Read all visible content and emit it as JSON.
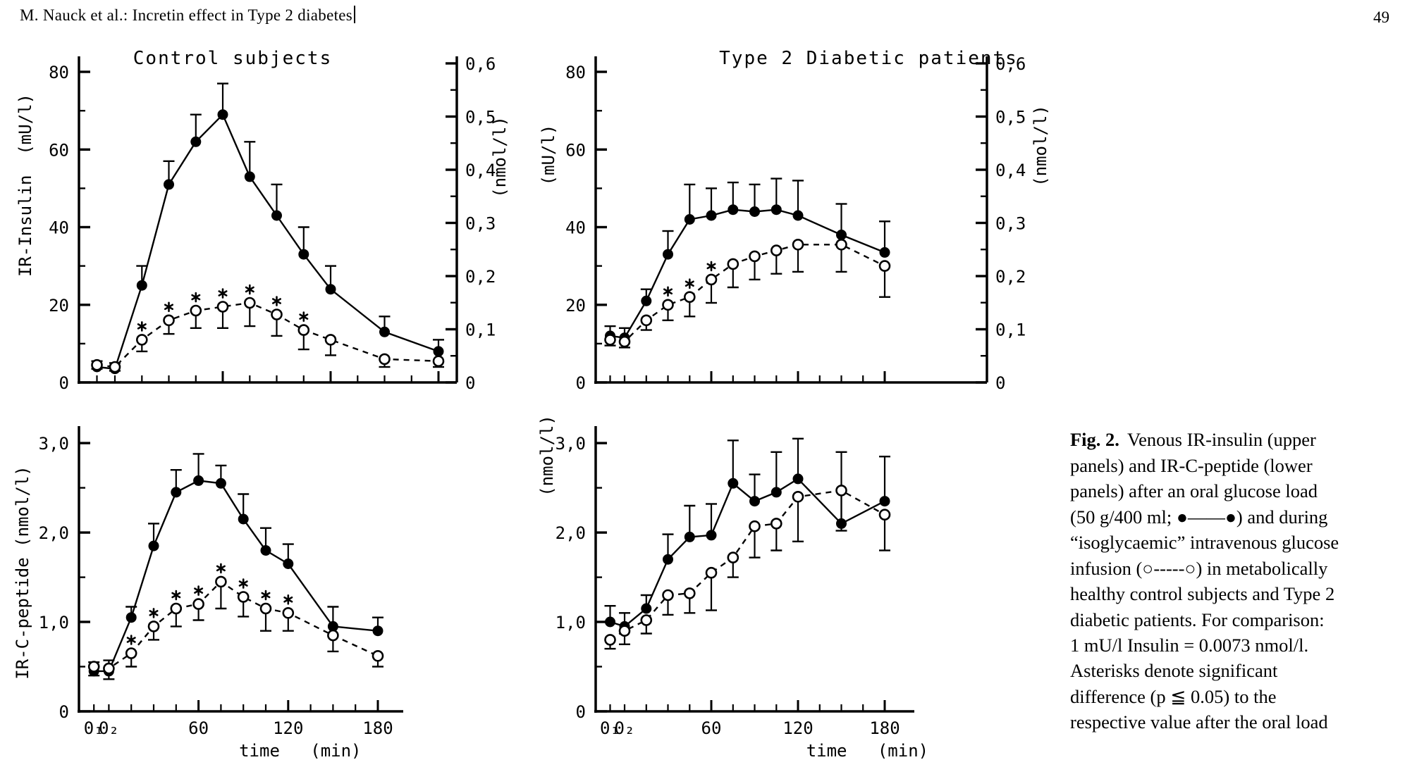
{
  "header": {
    "running_title": "M. Nauck et al.: Incretin effect in Type 2 diabetes",
    "page_number": "49"
  },
  "caption": {
    "label": "Fig. 2.",
    "text": "Venous IR-insulin (upper\npanels) and IR-C-peptide (lower\npanels) after an oral glucose load\n(50 g/400 ml; ●——●) and during\n“isoglycaemic” intravenous glucose\ninfusion (○-----○) in metabolically\nhealthy control subjects and Type 2\ndiabetic patients. For comparison:\n1 mU/l Insulin = 0.0073 nmol/l.\nAsterisks denote significant\ndifference (p ≦ 0.05) to the\nrespective value after the oral load"
  },
  "x_ticks": [
    {
      "t": -10,
      "label": "0₁"
    },
    {
      "t": 0,
      "label": "0₂"
    },
    {
      "t": 15
    },
    {
      "t": 30
    },
    {
      "t": 45
    },
    {
      "t": 60,
      "label": "60",
      "major": true
    },
    {
      "t": 75
    },
    {
      "t": 90
    },
    {
      "t": 105
    },
    {
      "t": 120,
      "label": "120",
      "major": true
    },
    {
      "t": 135
    },
    {
      "t": 150
    },
    {
      "t": 165
    },
    {
      "t": 180,
      "label": "180",
      "major": true
    }
  ],
  "chart_data": [
    {
      "type": "line",
      "id": "control-ir-insulin",
      "title": "Control subjects",
      "measure": "IR-Insulin",
      "y_axis_label": "IR-Insulin  (mU/l)",
      "right_axis_label": "(nmol/l)",
      "x_axis_label": "",
      "xlim": [
        -20,
        190
      ],
      "ylim": [
        0,
        84
      ],
      "x": [
        -10,
        0,
        15,
        30,
        45,
        60,
        75,
        90,
        105,
        120,
        150,
        180
      ],
      "y_ticks": [
        {
          "v": 0,
          "label": "0"
        },
        {
          "v": 10
        },
        {
          "v": 20,
          "label": "20"
        },
        {
          "v": 30
        },
        {
          "v": 40,
          "label": "40"
        },
        {
          "v": 50
        },
        {
          "v": 60,
          "label": "60"
        },
        {
          "v": 70
        },
        {
          "v": 80,
          "label": "80"
        }
      ],
      "right_axis": {
        "unit_per_left": 0.0073,
        "ticks": [
          {
            "v": 0,
            "label": "0"
          },
          {
            "v": 0.05
          },
          {
            "v": 0.1,
            "label": "0,1"
          },
          {
            "v": 0.15
          },
          {
            "v": 0.2,
            "label": "0,2"
          },
          {
            "v": 0.25
          },
          {
            "v": 0.3,
            "label": "0,3"
          },
          {
            "v": 0.35
          },
          {
            "v": 0.4,
            "label": "0,4"
          },
          {
            "v": 0.45
          },
          {
            "v": 0.5,
            "label": "0,5"
          },
          {
            "v": 0.55
          },
          {
            "v": 0.6,
            "label": "0,6"
          }
        ]
      },
      "series": [
        {
          "name": "oral glucose load (50 g/400 ml)",
          "marker": "filled",
          "line": "solid",
          "error_direction": "up",
          "values": [
            4,
            3.5,
            25,
            51,
            62,
            69,
            53,
            43,
            33,
            24,
            13,
            8
          ],
          "errors": [
            1.5,
            1.5,
            5,
            6,
            7,
            8,
            9,
            8,
            7,
            6,
            4,
            3
          ]
        },
        {
          "name": "isoglycaemic intravenous glucose infusion",
          "marker": "open",
          "line": "dashed",
          "error_direction": "down",
          "values": [
            4.5,
            4,
            11,
            16,
            18.5,
            19.5,
            20.5,
            17.5,
            13.5,
            11,
            6,
            5.5
          ],
          "errors": [
            1,
            1,
            3,
            3.5,
            4.5,
            5.5,
            6,
            5.5,
            5,
            4,
            2,
            1.5
          ]
        }
      ],
      "asterisk_times": [
        15,
        30,
        45,
        60,
        75,
        90,
        105
      ]
    },
    {
      "type": "line",
      "id": "type2-ir-insulin",
      "title": "Type 2 Diabetic patients",
      "measure": "IR-Insulin",
      "y_axis_label": "(mU/l)",
      "right_axis_label": "(nmol/l)",
      "x_axis_label": "",
      "xlim": [
        -20,
        190
      ],
      "ylim": [
        0,
        84
      ],
      "x": [
        -10,
        0,
        15,
        30,
        45,
        60,
        75,
        90,
        105,
        120,
        150,
        180
      ],
      "y_ticks": [
        {
          "v": 0,
          "label": "0"
        },
        {
          "v": 10
        },
        {
          "v": 20,
          "label": "20"
        },
        {
          "v": 30
        },
        {
          "v": 40,
          "label": "40"
        },
        {
          "v": 50
        },
        {
          "v": 60,
          "label": "60"
        },
        {
          "v": 70
        },
        {
          "v": 80,
          "label": "80"
        }
      ],
      "right_axis": {
        "unit_per_left": 0.0073,
        "ticks": [
          {
            "v": 0,
            "label": "0"
          },
          {
            "v": 0.05
          },
          {
            "v": 0.1,
            "label": "0,1"
          },
          {
            "v": 0.15
          },
          {
            "v": 0.2,
            "label": "0,2"
          },
          {
            "v": 0.25
          },
          {
            "v": 0.3,
            "label": "0,3"
          },
          {
            "v": 0.35
          },
          {
            "v": 0.4,
            "label": "0,4"
          },
          {
            "v": 0.45
          },
          {
            "v": 0.5,
            "label": "0,5"
          },
          {
            "v": 0.55
          },
          {
            "v": 0.6,
            "label": "0,6"
          }
        ]
      },
      "series": [
        {
          "name": "oral glucose load (50 g/400 ml)",
          "marker": "filled",
          "line": "solid",
          "error_direction": "up",
          "values": [
            12,
            11.5,
            21,
            33,
            42,
            43,
            44.5,
            44,
            44.5,
            43,
            38,
            33.5
          ],
          "errors": [
            2.5,
            2.5,
            3,
            6,
            9,
            7,
            7,
            7,
            8,
            9,
            8,
            8
          ]
        },
        {
          "name": "isoglycaemic intravenous glucose infusion",
          "marker": "open",
          "line": "dashed",
          "error_direction": "down",
          "values": [
            11,
            10.5,
            16,
            20,
            22,
            26.5,
            30.5,
            32.5,
            34,
            35.5,
            35.5,
            30
          ],
          "errors": [
            1.5,
            1.5,
            2.5,
            4,
            5,
            6,
            6,
            6,
            6,
            7,
            7,
            8
          ]
        }
      ],
      "asterisk_times": [
        30,
        45,
        60
      ]
    },
    {
      "type": "line",
      "id": "control-ir-c-peptide",
      "title": "",
      "measure": "IR-C-peptide",
      "y_axis_label": "IR-C-peptide (nmol/l)",
      "right_axis_label": "",
      "x_axis_label": "time   (min)",
      "xlim": [
        -20,
        190
      ],
      "ylim": [
        0,
        3.19
      ],
      "x": [
        -10,
        0,
        15,
        30,
        45,
        60,
        75,
        90,
        105,
        120,
        150,
        180
      ],
      "y_ticks": [
        {
          "v": 0,
          "label": "0"
        },
        {
          "v": 0.5
        },
        {
          "v": 1,
          "label": "1,0"
        },
        {
          "v": 1.5
        },
        {
          "v": 2,
          "label": "2,0"
        },
        {
          "v": 2.5
        },
        {
          "v": 3,
          "label": "3,0"
        }
      ],
      "series": [
        {
          "name": "oral glucose load (50 g/400 ml)",
          "marker": "filled",
          "line": "solid",
          "error_direction": "up",
          "values": [
            0.45,
            0.45,
            1.05,
            1.85,
            2.45,
            2.58,
            2.55,
            2.15,
            1.8,
            1.65,
            0.95,
            0.9
          ],
          "errors": [
            0.1,
            0.12,
            0.12,
            0.25,
            0.25,
            0.3,
            0.2,
            0.28,
            0.25,
            0.22,
            0.22,
            0.15
          ]
        },
        {
          "name": "isoglycaemic intravenous glucose infusion",
          "marker": "open",
          "line": "dashed",
          "error_direction": "down",
          "values": [
            0.5,
            0.48,
            0.65,
            0.95,
            1.15,
            1.2,
            1.45,
            1.28,
            1.15,
            1.1,
            0.85,
            0.62
          ],
          "errors": [
            0.1,
            0.12,
            0.15,
            0.15,
            0.2,
            0.18,
            0.3,
            0.22,
            0.25,
            0.2,
            0.18,
            0.12
          ]
        }
      ],
      "asterisk_times": [
        15,
        30,
        45,
        60,
        75,
        90,
        105,
        120
      ]
    },
    {
      "type": "line",
      "id": "type2-ir-c-peptide",
      "title": "",
      "measure": "IR-C-peptide",
      "y_axis_label": "(nmol/l)",
      "right_axis_label": "",
      "x_axis_label": "time   (min)",
      "xlim": [
        -20,
        190
      ],
      "ylim": [
        0,
        3.19
      ],
      "x": [
        -10,
        0,
        15,
        30,
        45,
        60,
        75,
        90,
        105,
        120,
        150,
        180
      ],
      "y_ticks": [
        {
          "v": 0,
          "label": "0"
        },
        {
          "v": 0.5
        },
        {
          "v": 1,
          "label": "1,0"
        },
        {
          "v": 1.5
        },
        {
          "v": 2,
          "label": "2,0"
        },
        {
          "v": 2.5
        },
        {
          "v": 3,
          "label": "3,0"
        }
      ],
      "series": [
        {
          "name": "oral glucose load (50 g/400 ml)",
          "marker": "filled",
          "line": "solid",
          "error_direction": "up",
          "values": [
            1.0,
            0.95,
            1.15,
            1.7,
            1.95,
            1.97,
            2.55,
            2.35,
            2.45,
            2.6,
            2.1,
            2.35
          ],
          "errors": [
            0.18,
            0.15,
            0.15,
            0.28,
            0.35,
            0.35,
            0.48,
            0.3,
            0.45,
            0.45,
            0.8,
            0.5
          ]
        },
        {
          "name": "isoglycaemic intravenous glucose infusion",
          "marker": "open",
          "line": "dashed",
          "error_direction": "down",
          "values": [
            0.8,
            0.9,
            1.02,
            1.3,
            1.32,
            1.55,
            1.72,
            2.07,
            2.1,
            2.4,
            2.47,
            2.2
          ],
          "errors": [
            0.1,
            0.15,
            0.15,
            0.22,
            0.22,
            0.42,
            0.22,
            0.35,
            0.3,
            0.5,
            0.45,
            0.4
          ]
        }
      ],
      "asterisk_times": []
    }
  ]
}
